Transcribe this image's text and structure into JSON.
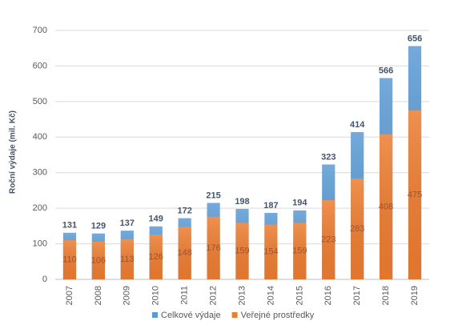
{
  "chart_data": {
    "type": "bar",
    "y_label": "Roční výdaje (mil. Kč)",
    "categories": [
      "2007",
      "2008",
      "2009",
      "2010",
      "2011",
      "2012",
      "2013",
      "2014",
      "2015",
      "2016",
      "2017",
      "2018",
      "2019"
    ],
    "series": [
      {
        "name": "Celkové výdaje",
        "color": "#5b9bd5",
        "values": [
          131,
          129,
          137,
          149,
          172,
          215,
          198,
          187,
          194,
          323,
          414,
          566,
          656
        ]
      },
      {
        "name": "Veřejné prostředky",
        "color": "#ed7d31",
        "values": [
          110,
          106,
          113,
          126,
          148,
          176,
          159,
          154,
          159,
          223,
          283,
          408,
          475
        ]
      }
    ],
    "overlap": true,
    "ylim": [
      0,
      700
    ],
    "yticks": [
      0,
      100,
      200,
      300,
      400,
      500,
      600,
      700
    ],
    "grid": true,
    "legend": "bottom"
  }
}
